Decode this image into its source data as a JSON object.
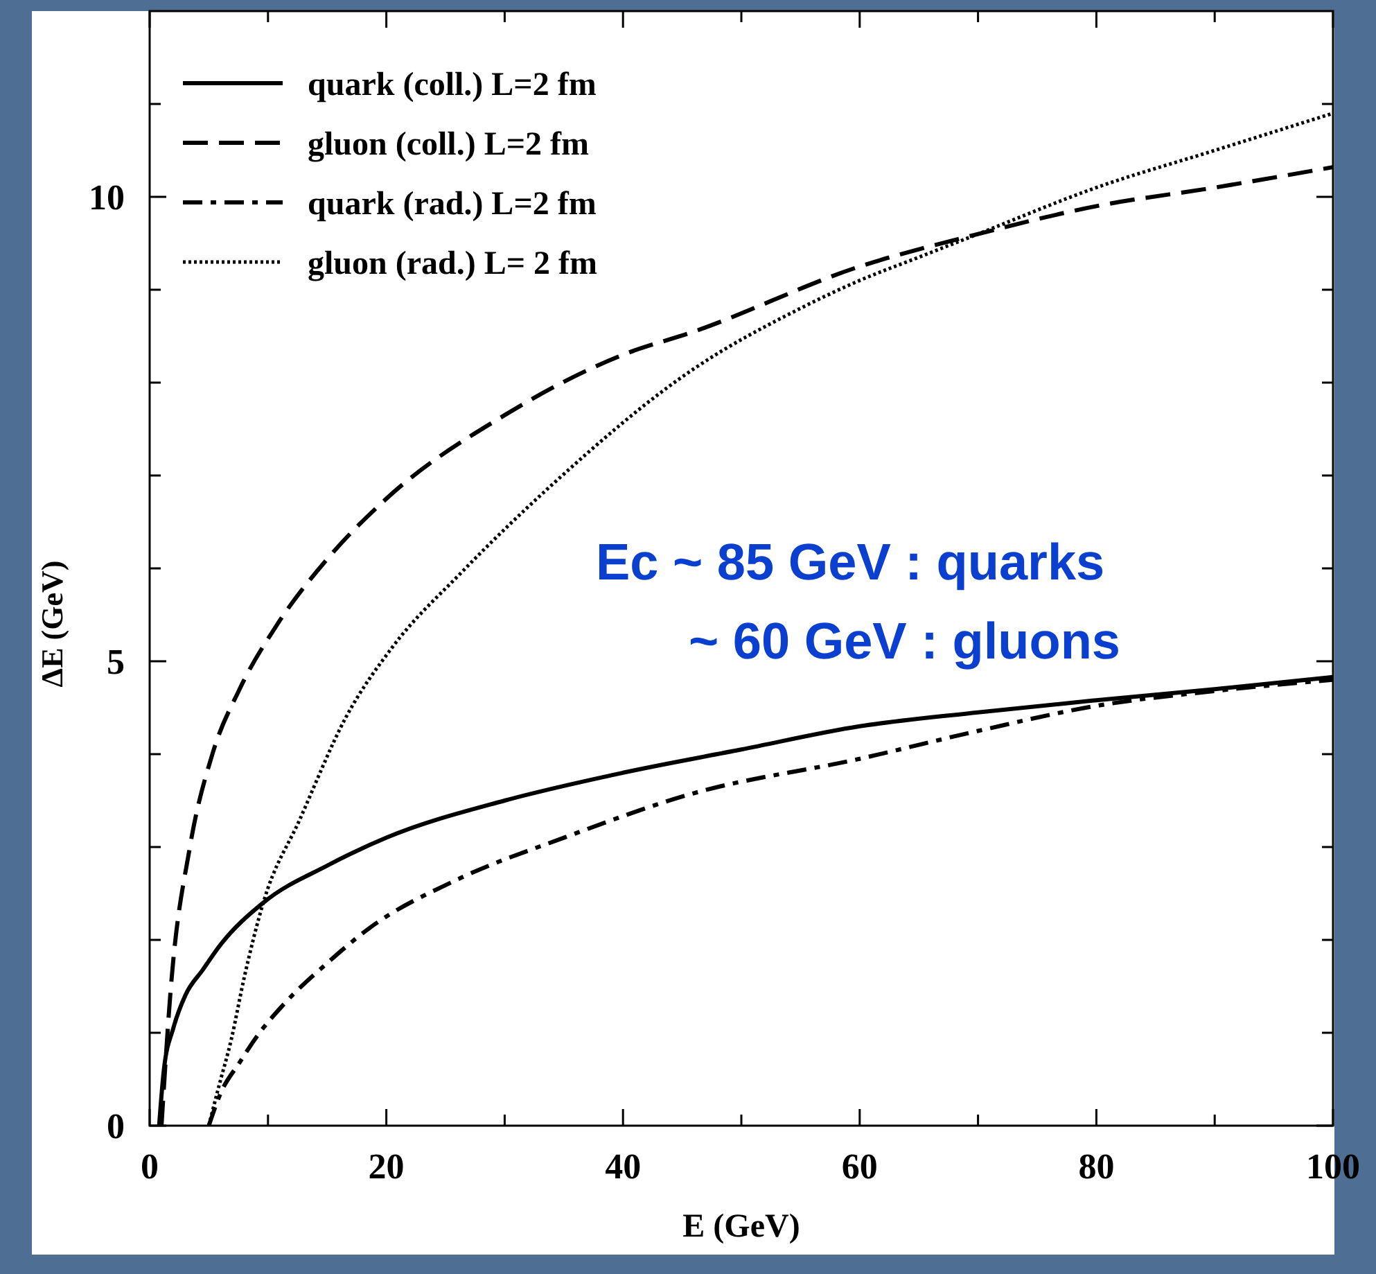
{
  "chart_data": {
    "type": "line",
    "xlabel": "E (GeV)",
    "ylabel": "ΔE (GeV)",
    "xlim": [
      0,
      100
    ],
    "ylim": [
      0,
      12
    ],
    "xticks": [
      0,
      {
        "value": 10,
        "label": null
      },
      20,
      {
        "value": 30,
        "label": null
      },
      40,
      {
        "value": 50,
        "label": null
      },
      60,
      {
        "value": 70,
        "label": null
      },
      80,
      {
        "value": 90,
        "label": null
      },
      100
    ],
    "yticks": [
      0,
      {
        "value": 1,
        "label": null
      },
      {
        "value": 2,
        "label": null
      },
      {
        "value": 3,
        "label": null
      },
      {
        "value": 4,
        "label": null
      },
      5,
      {
        "value": 6,
        "label": null
      },
      {
        "value": 7,
        "label": null
      },
      {
        "value": 8,
        "label": null
      },
      {
        "value": 9,
        "label": null
      },
      10,
      {
        "value": 11,
        "label": null
      }
    ],
    "legend": "top left",
    "grid": false,
    "marker": "none",
    "annotations": [
      "Ec ~ 85 GeV : quarks",
      "~ 60 GeV : gluons"
    ],
    "series": [
      {
        "name": "quark (coll.) L=2 fm",
        "color": "#000000",
        "line_style": "solid",
        "x": [
          0.8,
          1.2,
          2,
          3,
          4.5,
          6,
          9.6,
          15,
          20,
          30,
          40,
          50,
          60,
          70,
          80,
          90,
          100
        ],
        "values": [
          0,
          0.6,
          1.05,
          1.4,
          1.68,
          1.95,
          2.4,
          2.8,
          3.1,
          3.5,
          3.8,
          4.05,
          4.3,
          4.45,
          4.58,
          4.7,
          4.83
        ]
      },
      {
        "name": "gluon (coll.) L=2 fm",
        "color": "#000000",
        "line_style": "dashed",
        "x": [
          1,
          1.8,
          3.4,
          5.3,
          7.6,
          10.8,
          15,
          20,
          30,
          40,
          46,
          60,
          70,
          80,
          90,
          100
        ],
        "values": [
          0,
          1.5,
          3.0,
          4.0,
          4.7,
          5.4,
          6.1,
          6.75,
          7.65,
          8.3,
          8.55,
          9.25,
          9.6,
          9.9,
          10.1,
          10.32
        ]
      },
      {
        "name": "quark (rad.) L=2 fm",
        "color": "#000000",
        "line_style": "dashdot",
        "x": [
          5,
          6,
          7.6,
          9,
          11.5,
          15,
          18.6,
          26,
          35,
          46,
          60,
          70,
          80,
          90,
          100
        ],
        "values": [
          0,
          0.35,
          0.68,
          0.95,
          1.33,
          1.75,
          2.13,
          2.65,
          3.1,
          3.58,
          3.95,
          4.25,
          4.52,
          4.68,
          4.8
        ]
      },
      {
        "name": "gluon (rad.) L= 2 fm",
        "color": "#000000",
        "line_style": "dotted",
        "x": [
          5,
          5.8,
          6.9,
          8,
          9.6,
          12.7,
          16.6,
          20.5,
          26.3,
          34,
          46,
          55,
          60,
          65,
          70,
          80,
          90,
          100
        ],
        "values": [
          0,
          0.4,
          0.93,
          1.6,
          2.4,
          3.3,
          4.4,
          5.15,
          5.95,
          6.9,
          8.15,
          8.8,
          9.1,
          9.35,
          9.6,
          10.1,
          10.5,
          10.9
        ]
      }
    ]
  }
}
